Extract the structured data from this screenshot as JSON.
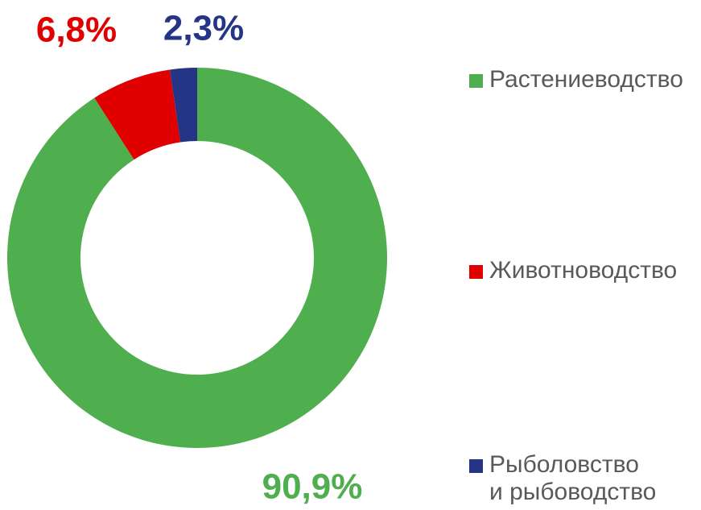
{
  "chart_data": {
    "type": "pie",
    "categories": [
      "Растениеводство",
      "Животноводство",
      "Рыболовство\nи рыбоводство"
    ],
    "values": [
      90.9,
      6.8,
      2.3
    ],
    "value_labels": [
      "90,9%",
      "6,8%",
      "2,3%"
    ],
    "colors": [
      "#4faf4f",
      "#e00000",
      "#253585"
    ],
    "legend": "right"
  }
}
